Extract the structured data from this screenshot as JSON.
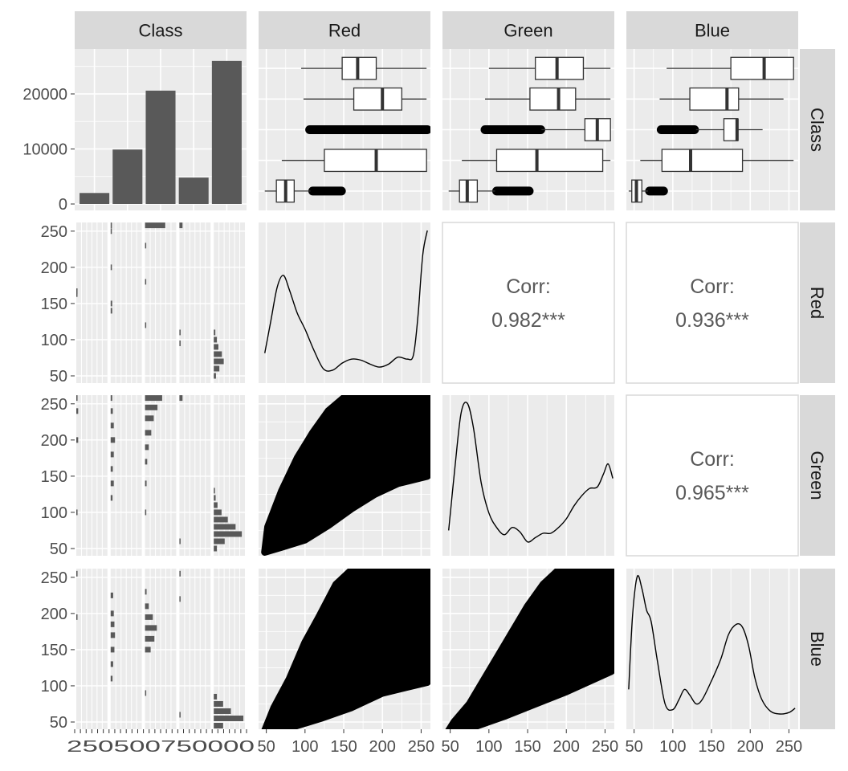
{
  "chart_data": {
    "type": "pairs",
    "variables": [
      "Class",
      "Red",
      "Green",
      "Blue"
    ],
    "colors": {
      "panel_background": "#ebebeb",
      "grid": "#ffffff",
      "strip_background": "#d9d9d9",
      "bar_fill": "#595959",
      "points": "#000000",
      "line": "#000000",
      "text": "#1a1a1a",
      "tick_text": "#4d4d4d",
      "corr_text": "#595959"
    },
    "class_counts": {
      "type": "bar",
      "values": [
        2000,
        9900,
        20600,
        4800,
        26000
      ],
      "ylim": [
        0,
        27000
      ],
      "yticks": [
        0,
        10000,
        20000
      ],
      "ytick_labels": [
        "0",
        "10000",
        "20000"
      ]
    },
    "boxplots": {
      "type": "boxplot",
      "orientation": "horizontal",
      "note": "one box per class level, listed top to bottom",
      "Red": [
        {
          "lower": 95,
          "q1": 148,
          "median": 168,
          "q3": 192,
          "upper": 257,
          "outliers_range": null
        },
        {
          "lower": 98,
          "q1": 163,
          "median": 200,
          "q3": 225,
          "upper": 257,
          "outliers_range": null
        },
        {
          "lower": null,
          "q1": null,
          "median": null,
          "q3": null,
          "upper": null,
          "outliers_range": [
            106,
            258
          ]
        },
        {
          "lower": 70,
          "q1": 125,
          "median": 192,
          "q3": 257,
          "upper": 257,
          "outliers_range": null
        },
        {
          "lower": 48,
          "q1": 63,
          "median": 75,
          "q3": 86,
          "upper": 107,
          "outliers_range": [
            110,
            147
          ]
        }
      ],
      "Green": [
        {
          "lower": 100,
          "q1": 160,
          "median": 188,
          "q3": 222,
          "upper": 257,
          "outliers_range": null
        },
        {
          "lower": 95,
          "q1": 153,
          "median": 190,
          "q3": 212,
          "upper": 257,
          "outliers_range": null
        },
        {
          "lower": 168,
          "q1": 224,
          "median": 240,
          "q3": 257,
          "upper": 257,
          "outliers_range": [
            95,
            167
          ]
        },
        {
          "lower": 65,
          "q1": 110,
          "median": 162,
          "q3": 247,
          "upper": 257,
          "outliers_range": null
        },
        {
          "lower": 48,
          "q1": 62,
          "median": 72,
          "q3": 85,
          "upper": 108,
          "outliers_range": [
            110,
            152
          ]
        }
      ],
      "Blue": [
        {
          "lower": 92,
          "q1": 175,
          "median": 218,
          "q3": 256,
          "upper": 256,
          "outliers_range": null
        },
        {
          "lower": 83,
          "q1": 122,
          "median": 170,
          "q3": 185,
          "upper": 243,
          "outliers_range": null
        },
        {
          "lower": 130,
          "q1": 166,
          "median": 183,
          "q3": 184,
          "upper": 216,
          "outliers_range": [
            85,
            128
          ]
        },
        {
          "lower": 58,
          "q1": 86,
          "median": 123,
          "q3": 190,
          "upper": 256,
          "outliers_range": null
        },
        {
          "lower": 43,
          "q1": 47,
          "median": 53,
          "q3": 60,
          "upper": 68,
          "outliers_range": [
            70,
            88
          ]
        }
      ]
    },
    "faceted_histograms": {
      "type": "bar",
      "orientation": "horizontal",
      "note": "relative widths of the stacked histogram bars for each class facet, listed bottom to top by value",
      "Red": [
        {
          "bins": [
            [
              163,
              0.02
            ],
            [
              167,
              0.04
            ]
          ]
        },
        {
          "bins": [
            [
              140,
              0.05
            ],
            [
              150,
              0.05
            ],
            [
              200,
              0.04
            ],
            [
              250,
              0.03
            ],
            [
              258,
              0.04
            ]
          ]
        },
        {
          "bins": [
            [
              120,
              0.02
            ],
            [
              180,
              0.03
            ],
            [
              230,
              0.03
            ],
            [
              258,
              0.65
            ]
          ]
        },
        {
          "bins": [
            [
              95,
              0.04
            ],
            [
              110,
              0.04
            ],
            [
              258,
              0.1
            ]
          ]
        },
        {
          "bins": [
            [
              50,
              0.07
            ],
            [
              60,
              0.18
            ],
            [
              70,
              0.32
            ],
            [
              80,
              0.26
            ],
            [
              90,
              0.15
            ],
            [
              100,
              0.1
            ],
            [
              110,
              0.05
            ]
          ]
        }
      ],
      "Green": [
        {
          "bins": [
            [
              100,
              0.04
            ],
            [
              200,
              0.06
            ],
            [
              240,
              0.06
            ],
            [
              258,
              0.04
            ]
          ]
        },
        {
          "bins": [
            [
              120,
              0.06
            ],
            [
              140,
              0.1
            ],
            [
              160,
              0.07
            ],
            [
              180,
              0.1
            ],
            [
              200,
              0.14
            ],
            [
              220,
              0.1
            ],
            [
              240,
              0.07
            ],
            [
              258,
              0.05
            ]
          ]
        },
        {
          "bins": [
            [
              100,
              0.04
            ],
            [
              140,
              0.05
            ],
            [
              170,
              0.07
            ],
            [
              190,
              0.12
            ],
            [
              210,
              0.2
            ],
            [
              230,
              0.28
            ],
            [
              245,
              0.4
            ],
            [
              258,
              0.55
            ]
          ]
        },
        {
          "bins": [
            [
              60,
              0.03
            ],
            [
              258,
              0.1
            ]
          ]
        },
        {
          "bins": [
            [
              50,
              0.1
            ],
            [
              60,
              0.35
            ],
            [
              70,
              0.9
            ],
            [
              80,
              0.7
            ],
            [
              90,
              0.45
            ],
            [
              100,
              0.25
            ],
            [
              110,
              0.12
            ],
            [
              120,
              0.06
            ],
            [
              130,
              0.03
            ]
          ]
        }
      ],
      "Blue": [
        {
          "bins": [
            [
              195,
              0.03
            ],
            [
              255,
              0.04
            ]
          ]
        },
        {
          "bins": [
            [
              110,
              0.06
            ],
            [
              130,
              0.08
            ],
            [
              150,
              0.12
            ],
            [
              170,
              0.14
            ],
            [
              185,
              0.12
            ],
            [
              200,
              0.1
            ],
            [
              225,
              0.08
            ]
          ]
        },
        {
          "bins": [
            [
              90,
              0.02
            ],
            [
              150,
              0.18
            ],
            [
              165,
              0.3
            ],
            [
              180,
              0.38
            ],
            [
              195,
              0.25
            ],
            [
              210,
              0.12
            ],
            [
              230,
              0.05
            ]
          ]
        },
        {
          "bins": [
            [
              60,
              0.03
            ],
            [
              220,
              0.03
            ],
            [
              255,
              0.04
            ]
          ]
        },
        {
          "bins": [
            [
              45,
              0.3
            ],
            [
              55,
              0.95
            ],
            [
              65,
              0.55
            ],
            [
              75,
              0.3
            ],
            [
              85,
              0.1
            ]
          ]
        }
      ]
    },
    "density": {
      "type": "line",
      "Red": {
        "x": [
          48,
          56,
          64,
          72,
          80,
          90,
          100,
          112,
          124,
          136,
          148,
          160,
          172,
          184,
          196,
          208,
          220,
          232,
          240,
          246,
          252,
          258
        ],
        "y": [
          0.22,
          0.55,
          0.88,
          1.0,
          0.85,
          0.62,
          0.46,
          0.24,
          0.06,
          0.05,
          0.12,
          0.16,
          0.15,
          0.11,
          0.08,
          0.11,
          0.18,
          0.16,
          0.2,
          0.6,
          1.2,
          1.45
        ]
      },
      "Green": {
        "x": [
          48,
          56,
          64,
          72,
          80,
          90,
          100,
          110,
          120,
          130,
          140,
          150,
          160,
          170,
          180,
          190,
          200,
          210,
          220,
          230,
          240,
          248,
          254,
          260
        ],
        "y": [
          0.12,
          0.55,
          0.93,
          1.0,
          0.83,
          0.45,
          0.24,
          0.14,
          0.09,
          0.14,
          0.11,
          0.04,
          0.07,
          0.1,
          0.1,
          0.14,
          0.2,
          0.29,
          0.36,
          0.41,
          0.42,
          0.51,
          0.58,
          0.48
        ]
      },
      "Blue": {
        "x": [
          43,
          48,
          54,
          60,
          66,
          72,
          80,
          90,
          100,
          108,
          115,
          122,
          130,
          138,
          150,
          162,
          172,
          182,
          190,
          198,
          206,
          215,
          226,
          238,
          250,
          258
        ],
        "y": [
          0.22,
          0.73,
          1.0,
          0.92,
          0.77,
          0.69,
          0.42,
          0.12,
          0.08,
          0.15,
          0.22,
          0.18,
          0.12,
          0.15,
          0.28,
          0.43,
          0.6,
          0.67,
          0.65,
          0.52,
          0.3,
          0.15,
          0.07,
          0.05,
          0.06,
          0.09
        ]
      }
    },
    "scatter": {
      "type": "scatter",
      "note": "dense point clouds; each shape gives the envelope of the points as [x, y] pairs in data units",
      "Red_vs_Green": {
        "envelope": [
          [
            48,
            45
          ],
          [
            70,
            52
          ],
          [
            100,
            62
          ],
          [
            130,
            82
          ],
          [
            160,
            105
          ],
          [
            190,
            125
          ],
          [
            220,
            140
          ],
          [
            258,
            150
          ],
          [
            258,
            260
          ],
          [
            152,
            260
          ],
          [
            130,
            240
          ],
          [
            110,
            210
          ],
          [
            90,
            175
          ],
          [
            70,
            130
          ],
          [
            52,
            80
          ]
        ]
      },
      "Red_vs_Blue": {
        "envelope": [
          [
            48,
            38
          ],
          [
            80,
            42
          ],
          [
            120,
            55
          ],
          [
            160,
            70
          ],
          [
            200,
            90
          ],
          [
            258,
            105
          ],
          [
            258,
            260
          ],
          [
            160,
            260
          ],
          [
            140,
            240
          ],
          [
            118,
            195
          ],
          [
            100,
            160
          ],
          [
            80,
            110
          ],
          [
            60,
            70
          ]
        ]
      },
      "Green_vs_Blue": {
        "envelope": [
          [
            48,
            38
          ],
          [
            80,
            43
          ],
          [
            120,
            58
          ],
          [
            160,
            75
          ],
          [
            200,
            92
          ],
          [
            258,
            120
          ],
          [
            258,
            260
          ],
          [
            190,
            260
          ],
          [
            170,
            240
          ],
          [
            150,
            210
          ],
          [
            125,
            165
          ],
          [
            100,
            120
          ],
          [
            75,
            75
          ],
          [
            55,
            50
          ]
        ]
      }
    },
    "correlations": [
      {
        "row": "Red",
        "col": "Green",
        "label": "Corr:",
        "value": "0.982***"
      },
      {
        "row": "Red",
        "col": "Blue",
        "label": "Corr:",
        "value": "0.936***"
      },
      {
        "row": "Green",
        "col": "Blue",
        "label": "Corr:",
        "value": "0.965***"
      }
    ],
    "axes": {
      "value_range": [
        40,
        262
      ],
      "ticks": [
        50,
        100,
        150,
        200,
        250
      ],
      "tick_labels": [
        "50",
        "100",
        "150",
        "200",
        "250"
      ],
      "class_tick_labels_garbled": "250500750000"
    }
  }
}
